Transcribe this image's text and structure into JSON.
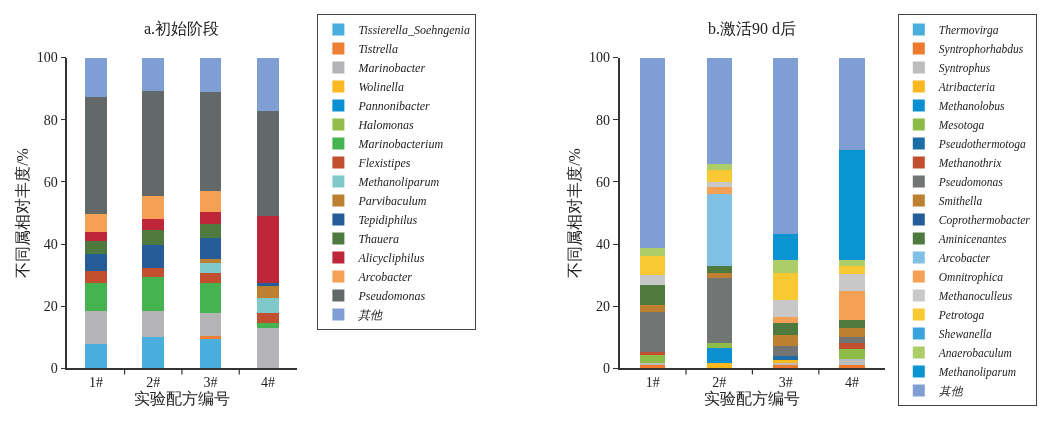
{
  "chart_data": [
    {
      "type": "bar",
      "stacked": true,
      "title": "a.初始阶段",
      "xlabel": "实验配方编号",
      "ylabel": "不同属相对丰度/%",
      "categories": [
        "1#",
        "2#",
        "3#",
        "4#"
      ],
      "ylim": [
        0,
        100
      ],
      "yticks": [
        0,
        20,
        40,
        60,
        80,
        100
      ],
      "legend": "right",
      "series": [
        {
          "name": "Tissierella_Soehngenia",
          "color": "#4aaedc",
          "values": [
            7.8,
            10.2,
            9.3,
            0
          ]
        },
        {
          "name": "Tistrella",
          "color": "#ef7f34",
          "values": [
            0,
            0,
            1.0,
            0
          ]
        },
        {
          "name": "Marinobacter",
          "color": "#b4b4b6",
          "values": [
            10.8,
            8.4,
            7.6,
            13.0
          ]
        },
        {
          "name": "Wolinella",
          "color": "#fbb921",
          "values": [
            0,
            0,
            0,
            0
          ]
        },
        {
          "name": "Pannonibacter",
          "color": "#0a8fd2",
          "values": [
            0,
            0,
            0,
            0
          ]
        },
        {
          "name": "Halomonas",
          "color": "#93bd48",
          "values": [
            0,
            0,
            0,
            0
          ]
        },
        {
          "name": "Marinobacterium",
          "color": "#45b450",
          "values": [
            9.0,
            10.8,
            9.7,
            1.6
          ]
        },
        {
          "name": "Flexistipes",
          "color": "#c24f30",
          "values": [
            3.7,
            3.0,
            3.0,
            3.3
          ]
        },
        {
          "name": "Methanoliparum",
          "color": "#80c9cb",
          "values": [
            0,
            0,
            3.4,
            4.6
          ]
        },
        {
          "name": "Parvibaculum",
          "color": "#bd7f30",
          "values": [
            0,
            0,
            1.2,
            3.9
          ]
        },
        {
          "name": "Tepidiphilus",
          "color": "#265d98",
          "values": [
            5.5,
            7.4,
            6.6,
            1.2
          ]
        },
        {
          "name": "Thauera",
          "color": "#4f7a3f",
          "values": [
            4.2,
            4.8,
            4.7,
            0
          ]
        },
        {
          "name": "Alicycliphilus",
          "color": "#be2639",
          "values": [
            2.8,
            3.4,
            3.9,
            21.3
          ]
        },
        {
          "name": "Arcobacter",
          "color": "#f4a055",
          "values": [
            5.8,
            7.6,
            6.8,
            0
          ]
        },
        {
          "name": "Pseudomonas",
          "color": "#636968",
          "values": [
            37.8,
            33.7,
            31.6,
            33.9
          ]
        },
        {
          "name": "其他",
          "color": "#7f9fd4",
          "values": [
            12.6,
            10.7,
            11.2,
            17.2
          ]
        }
      ]
    },
    {
      "type": "bar",
      "stacked": true,
      "title": "b.激活90 d后",
      "xlabel": "实验配方编号",
      "ylabel": "不同属相对丰度/%",
      "categories": [
        "1#",
        "2#",
        "3#",
        "4#"
      ],
      "ylim": [
        0,
        100
      ],
      "yticks": [
        0,
        20,
        40,
        60,
        80,
        100
      ],
      "legend": "right",
      "series": [
        {
          "name": "Thermovirga",
          "color": "#4aaedc",
          "values": [
            0,
            0,
            0,
            0
          ]
        },
        {
          "name": "Syntrophorhabdus",
          "color": "#ef7a2e",
          "values": [
            1.3,
            0,
            1.3,
            1.2
          ]
        },
        {
          "name": "Syntrophus",
          "color": "#bdbdbd",
          "values": [
            0.3,
            0,
            0.5,
            1.7
          ]
        },
        {
          "name": "Atribacteria",
          "color": "#f9b81f",
          "values": [
            0,
            1.6,
            1.0,
            0
          ]
        },
        {
          "name": "Methanolobus",
          "color": "#0a8fd2",
          "values": [
            0,
            5.0,
            0,
            0
          ]
        },
        {
          "name": "Mesotoga",
          "color": "#8cbb48",
          "values": [
            2.6,
            1.6,
            0,
            3.3
          ]
        },
        {
          "name": "Pseudothermotoga",
          "color": "#1c6ca8",
          "values": [
            0,
            0,
            1.3,
            0
          ]
        },
        {
          "name": "Methanothrix",
          "color": "#c24f30",
          "values": [
            1.2,
            0,
            0,
            1.9
          ]
        },
        {
          "name": "Pseudomonas",
          "color": "#717574",
          "values": [
            12.8,
            21.0,
            3.2,
            2.1
          ]
        },
        {
          "name": "Smithella",
          "color": "#bd7f30",
          "values": [
            2.3,
            1.6,
            3.4,
            2.9
          ]
        },
        {
          "name": "Coprothermobacter",
          "color": "#265d98",
          "values": [
            0,
            0,
            0,
            0
          ]
        },
        {
          "name": "Aminicenantes",
          "color": "#4f7a3f",
          "values": [
            6.4,
            2.3,
            4.0,
            2.6
          ]
        },
        {
          "name": "Arcobacter",
          "color": "#80c0e4",
          "values": [
            0,
            23.0,
            0,
            0
          ]
        },
        {
          "name": "Omnitrophica",
          "color": "#f4a055",
          "values": [
            0,
            2.2,
            1.8,
            9.2
          ]
        },
        {
          "name": "Methanoculleus",
          "color": "#c8c8c8",
          "values": [
            3.2,
            1.8,
            5.4,
            5.5
          ]
        },
        {
          "name": "Petrotoga",
          "color": "#f9c934",
          "values": [
            6.2,
            3.7,
            8.8,
            2.7
          ]
        },
        {
          "name": "Shewanella",
          "color": "#3aa3dc",
          "values": [
            0,
            0,
            0,
            0
          ]
        },
        {
          "name": "Anaerobaculum",
          "color": "#accd68",
          "values": [
            2.5,
            1.8,
            4.2,
            1.8
          ]
        },
        {
          "name": "Methanoliparum",
          "color": "#0a95d2",
          "values": [
            0,
            0,
            8.4,
            35.4
          ]
        },
        {
          "name": "其他",
          "color": "#7f9fd4",
          "values": [
            61.1,
            34.4,
            56.7,
            29.7
          ]
        }
      ]
    }
  ]
}
